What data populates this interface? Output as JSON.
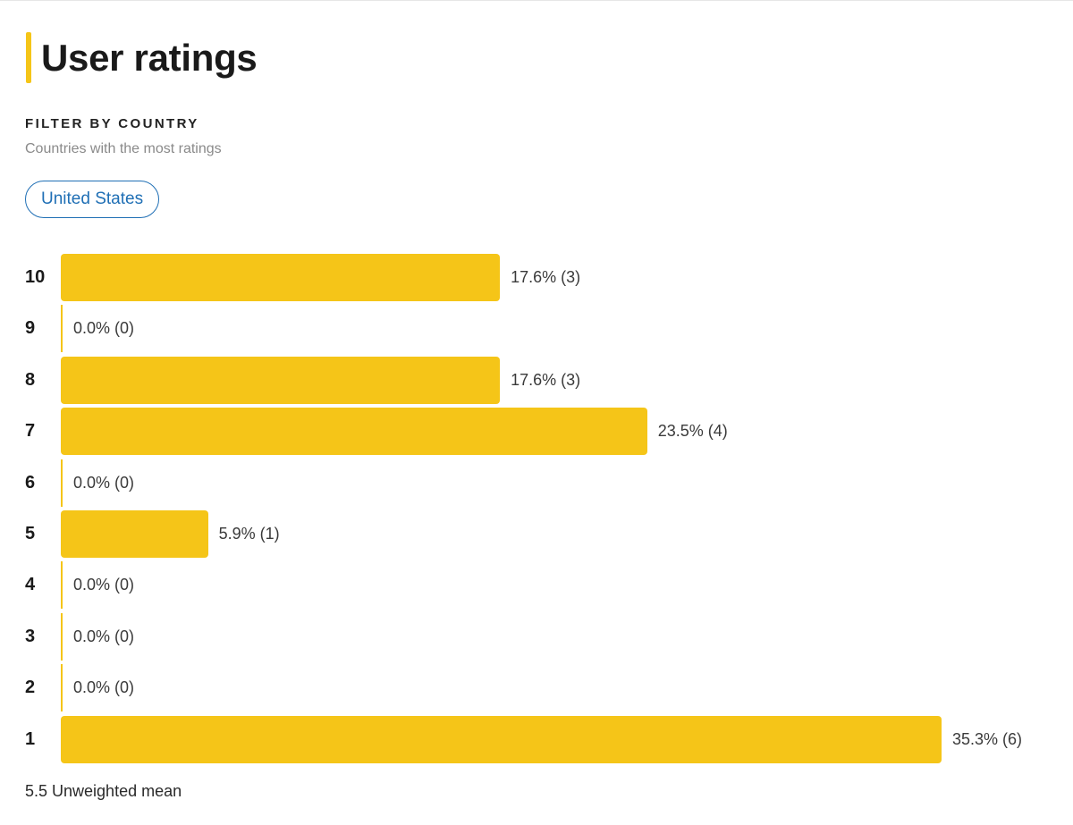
{
  "header": {
    "title": "User ratings"
  },
  "filter": {
    "heading": "FILTER BY COUNTRY",
    "subtitle": "Countries with the most ratings",
    "selected_country": "United States"
  },
  "summary": {
    "mean_text": "5.5 Unweighted mean"
  },
  "colors": {
    "accent": "#f5c518",
    "chip": "#1f6fb5"
  },
  "chart_data": {
    "type": "bar",
    "orientation": "horizontal",
    "categories": [
      "10",
      "9",
      "8",
      "7",
      "6",
      "5",
      "4",
      "3",
      "2",
      "1"
    ],
    "values": [
      17.6,
      0.0,
      17.6,
      23.5,
      0.0,
      5.9,
      0.0,
      0.0,
      0.0,
      35.3
    ],
    "counts": [
      3,
      0,
      3,
      4,
      0,
      1,
      0,
      0,
      0,
      6
    ],
    "labels": [
      "17.6% (3)",
      "0.0% (0)",
      "17.6% (3)",
      "23.5% (4)",
      "0.0% (0)",
      "5.9% (1)",
      "0.0% (0)",
      "0.0% (0)",
      "0.0% (0)",
      "35.3% (6)"
    ],
    "title": "",
    "xlabel": "",
    "ylabel": "",
    "grid": false
  }
}
